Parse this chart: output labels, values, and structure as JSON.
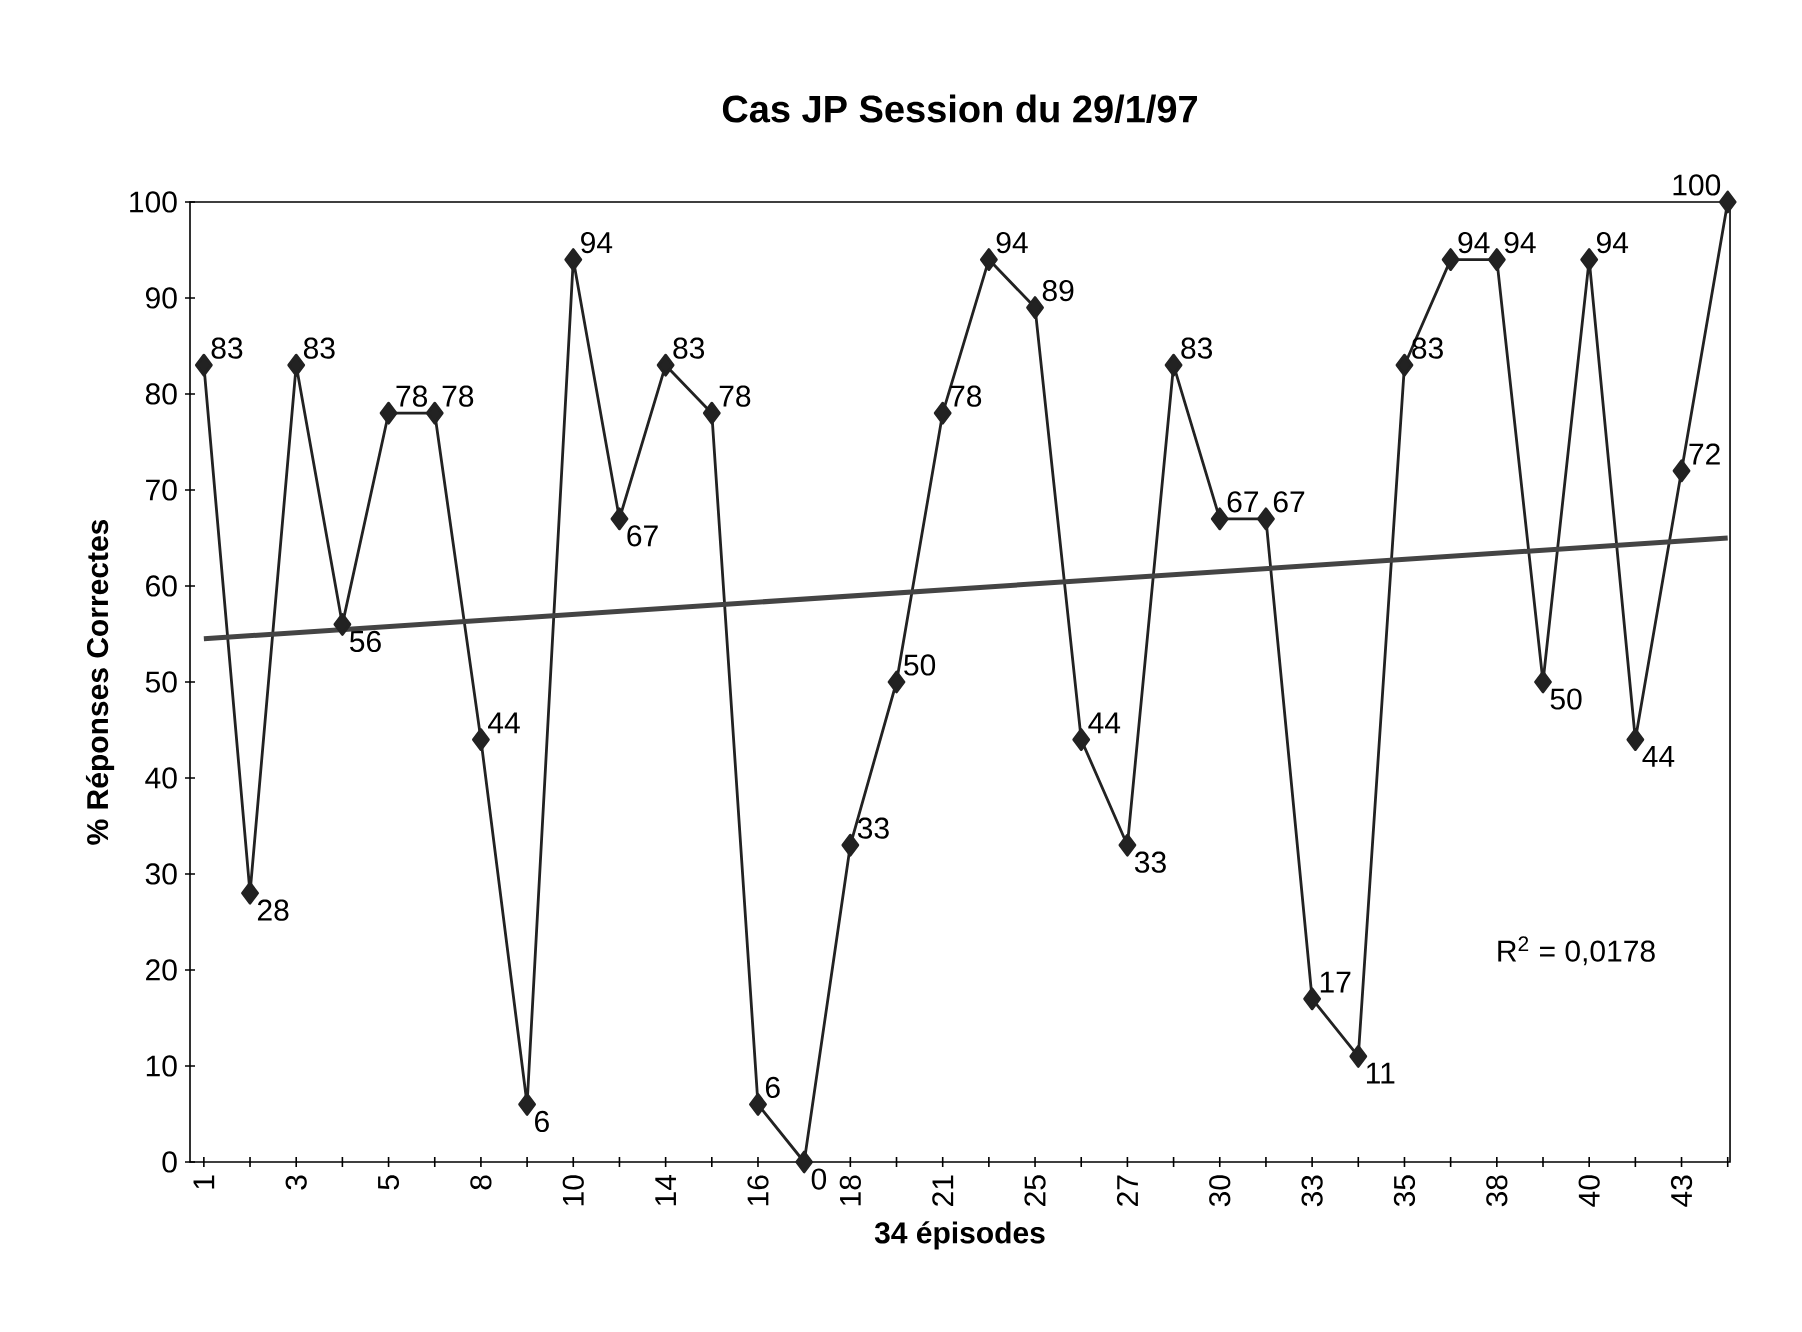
{
  "chart_data": {
    "type": "line",
    "title": "Cas JP  Session du 29/1/97",
    "xlabel": "34 épisodes",
    "ylabel": "% Réponses Correctes",
    "categories": [
      "1",
      null,
      "3",
      null,
      "5",
      null,
      "8",
      null,
      "10",
      null,
      "14",
      null,
      "16",
      null,
      "18",
      null,
      "21",
      null,
      "25",
      null,
      "27",
      null,
      "30",
      null,
      "33",
      null,
      "35",
      null,
      "38",
      null,
      "40",
      null,
      "43",
      null
    ],
    "series": [
      {
        "color": "#222222",
        "marker": "diamond",
        "values": [
          83,
          28,
          83,
          56,
          78,
          78,
          44,
          6,
          94,
          67,
          83,
          78,
          6,
          0,
          33,
          50,
          78,
          94,
          89,
          44,
          33,
          83,
          67,
          67,
          17,
          11,
          83,
          94,
          94,
          50,
          94,
          44,
          72,
          100
        ],
        "value_labels": [
          "83",
          "28",
          "83",
          "56",
          "78",
          "78",
          "44",
          "6",
          "94",
          "67",
          "83",
          "78",
          "6",
          "0",
          "33",
          "50",
          "78",
          "94",
          "89",
          "44",
          "33",
          "83",
          "67",
          "67",
          "17",
          "11",
          "83",
          "94",
          "94",
          "50",
          "94",
          "44",
          "72",
          "100"
        ]
      },
      {
        "type": "line",
        "color": "#444444",
        "marker": "none",
        "values": [
          54.5,
          null,
          null,
          null,
          null,
          null,
          null,
          null,
          null,
          null,
          null,
          null,
          null,
          null,
          null,
          null,
          null,
          null,
          null,
          null,
          null,
          null,
          null,
          null,
          null,
          null,
          null,
          null,
          null,
          null,
          null,
          null,
          null,
          65
        ]
      }
    ],
    "ylim": [
      0,
      100
    ],
    "yticks": [
      0,
      10,
      20,
      30,
      40,
      50,
      60,
      70,
      80,
      90,
      100
    ],
    "grid": false,
    "annotations": [
      "R$^{2}$ = 0,0178"
    ]
  }
}
